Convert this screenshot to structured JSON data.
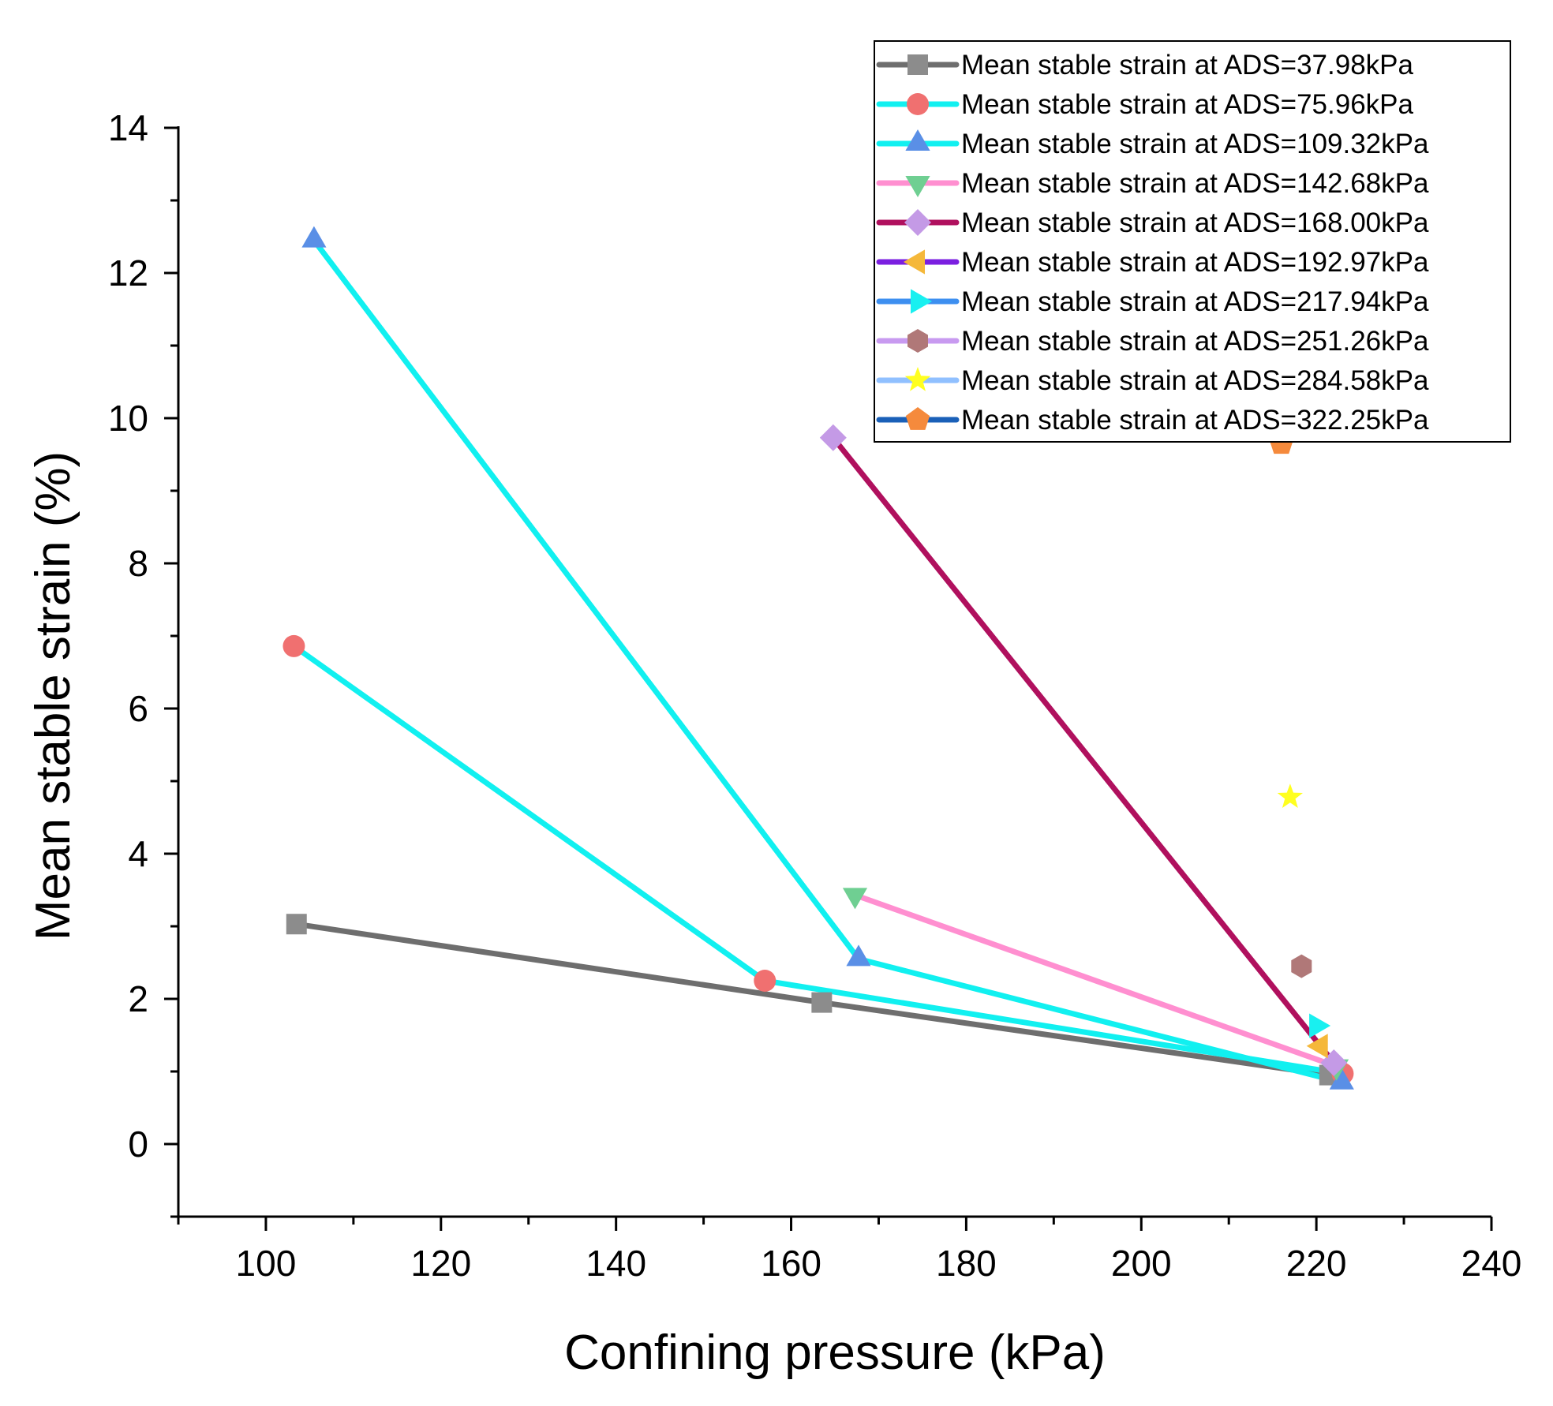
{
  "chart_data": {
    "type": "scatter",
    "title": "",
    "xlabel": "Confining pressure (kPa)",
    "ylabel": "Mean stable strain (%)",
    "xlim": [
      90,
      240
    ],
    "ylim": [
      -1,
      14
    ],
    "x_major_ticks": [
      100,
      120,
      140,
      160,
      180,
      200,
      220,
      240
    ],
    "y_major_ticks": [
      0,
      2,
      4,
      6,
      8,
      10,
      12,
      14
    ],
    "x_tick_labels": [
      "100",
      "120",
      "140",
      "160",
      "180",
      "200",
      "220",
      "240"
    ],
    "y_tick_labels": [
      "0",
      "2",
      "4",
      "6",
      "8",
      "10",
      "12",
      "14"
    ],
    "legend_position": "top-right",
    "series": [
      {
        "name": "Mean stable strain at ADS=37.98kPa",
        "marker": "square",
        "marker_color": "#8c8c8c",
        "line_color": "#6e6e6e",
        "x": [
          103.5,
          163.5,
          221.5
        ],
        "y": [
          3.03,
          1.95,
          0.95
        ]
      },
      {
        "name": "Mean stable strain at ADS=75.96kPa",
        "marker": "circle",
        "marker_color": "#f07070",
        "line_color": "#11f0f0",
        "x": [
          103.2,
          157.0,
          223.0
        ],
        "y": [
          6.86,
          2.25,
          0.97
        ]
      },
      {
        "name": "Mean stable strain at ADS=109.32kPa",
        "marker": "triangle-up",
        "marker_color": "#5a8fe6",
        "line_color": "#11f0f0",
        "x": [
          105.5,
          167.7,
          222.9
        ],
        "y": [
          12.45,
          2.55,
          0.85
        ]
      },
      {
        "name": "Mean stable strain at ADS=142.68kPa",
        "marker": "triangle-down",
        "marker_color": "#6fcf92",
        "line_color": "#ff8fd0",
        "x": [
          167.3,
          222.3
        ],
        "y": [
          3.43,
          1.07
        ]
      },
      {
        "name": "Mean stable strain at ADS=168.00kPa",
        "marker": "diamond",
        "marker_color": "#c49ae6",
        "line_color": "#b0105e",
        "x": [
          164.8,
          222.0
        ],
        "y": [
          9.73,
          1.12
        ]
      },
      {
        "name": "Mean stable strain at ADS=192.97kPa",
        "marker": "triangle-left",
        "marker_color": "#f5b83a",
        "line_color": "#7b1fe0",
        "x": [
          220.5
        ],
        "y": [
          1.35
        ]
      },
      {
        "name": "Mean stable strain at ADS=217.94kPa",
        "marker": "triangle-right",
        "marker_color": "#19f0f0",
        "line_color": "#3d8ff0",
        "x": [
          220.0
        ],
        "y": [
          1.63
        ]
      },
      {
        "name": "Mean stable strain at ADS=251.26kPa",
        "marker": "hexagon",
        "marker_color": "#b07878",
        "line_color": "#c89af0",
        "x": [
          218.3
        ],
        "y": [
          2.45
        ]
      },
      {
        "name": "Mean stable strain at ADS=284.58kPa",
        "marker": "star",
        "marker_color": "#ffff20",
        "line_color": "#90c0ff",
        "x": [
          217.0
        ],
        "y": [
          4.78
        ]
      },
      {
        "name": "Mean stable strain at ADS=322.25kPa",
        "marker": "pentagon",
        "marker_color": "#f58a3c",
        "line_color": "#1a60b8",
        "x": [
          216.0
        ],
        "y": [
          9.65
        ]
      }
    ]
  }
}
